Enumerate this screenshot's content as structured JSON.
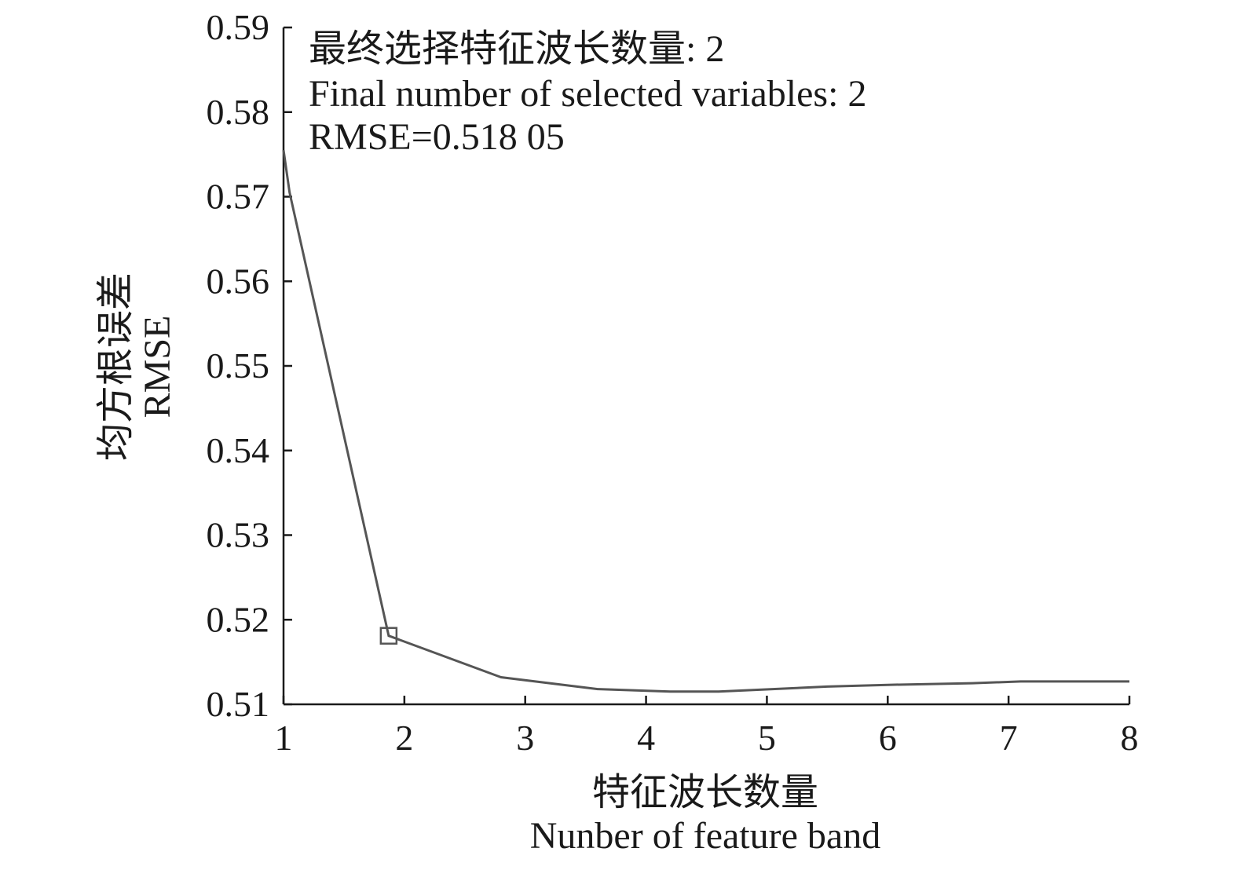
{
  "chart_data": {
    "type": "line",
    "xlabel_cn": "特征波长数量",
    "xlabel_en": "Nunber of feature band",
    "ylabel_cn": "均方根误差",
    "ylabel_en": "RMSE",
    "xlim": [
      1,
      8
    ],
    "ylim": [
      0.51,
      0.59
    ],
    "xticks": [
      "1",
      "2",
      "3",
      "4",
      "5",
      "6",
      "7",
      "8"
    ],
    "yticks": [
      "0.51",
      "0.52",
      "0.53",
      "0.54",
      "0.55",
      "0.56",
      "0.57",
      "0.58",
      "0.59"
    ],
    "annotations": [
      "最终选择特征波长数量: 2",
      "Final number of selected variables: 2",
      "RMSE=0.518 05"
    ],
    "series": [
      {
        "x": [
          1,
          1.05,
          1.87,
          2.8,
          3.6,
          4.2,
          4.6,
          5.5,
          6.0,
          6.7,
          7.1,
          8
        ],
        "y": [
          0.5755,
          0.5705,
          0.5181,
          0.5132,
          0.5118,
          0.5115,
          0.5115,
          0.5121,
          0.5123,
          0.5125,
          0.5127,
          0.5127
        ]
      }
    ],
    "marker": {
      "x": 1.87,
      "y": 0.5181
    },
    "grid": false,
    "legend": "none",
    "color": "#555555"
  }
}
